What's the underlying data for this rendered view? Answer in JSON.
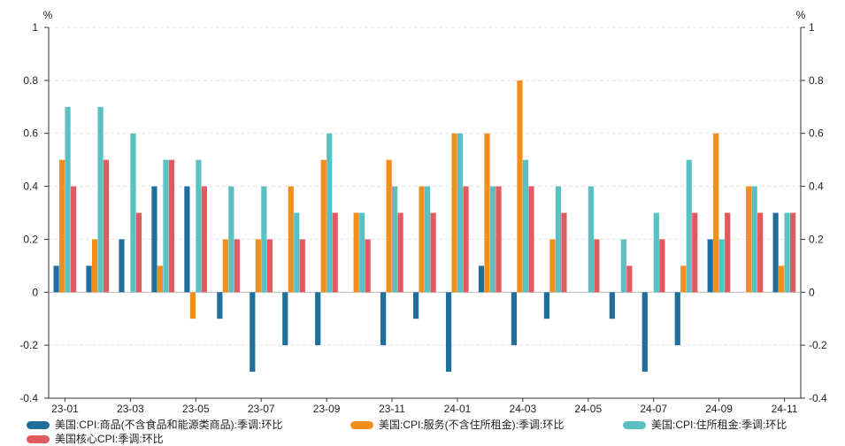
{
  "chart_data": {
    "type": "bar",
    "unit_left": "%",
    "unit_right": "%",
    "ylim": [
      -0.4,
      1
    ],
    "yticks": [
      -0.4,
      -0.2,
      0,
      0.2,
      0.4,
      0.6,
      0.8,
      1
    ],
    "ytick_labels": [
      "-0.4",
      "-0.2",
      "0",
      "0.2",
      "0.4",
      "0.6",
      "0.8",
      "1"
    ],
    "categories": [
      "23-01",
      "23-02",
      "23-03",
      "23-04",
      "23-05",
      "23-06",
      "23-07",
      "23-08",
      "23-09",
      "23-10",
      "23-11",
      "23-12",
      "24-01",
      "24-02",
      "24-03",
      "24-04",
      "24-05",
      "24-06",
      "24-07",
      "24-08",
      "24-09",
      "24-10",
      "24-11"
    ],
    "xtick_labels": [
      "23-01",
      "23-03",
      "23-05",
      "23-07",
      "23-09",
      "23-11",
      "24-01",
      "24-03",
      "24-05",
      "24-07",
      "24-09",
      "24-11"
    ],
    "series": [
      {
        "name": "美国:CPI:商品(不含食品和能源类商品):季调:环比",
        "color": "#1f6e9c",
        "values": [
          0.1,
          0.1,
          0.2,
          0.4,
          0.4,
          -0.1,
          -0.3,
          -0.2,
          -0.2,
          0,
          -0.2,
          -0.1,
          -0.3,
          0.1,
          -0.2,
          -0.1,
          0,
          -0.1,
          -0.3,
          -0.2,
          0.2,
          0,
          0.3
        ]
      },
      {
        "name": "美国:CPI:服务(不含住所租金):季调:环比",
        "color": "#f28e1c",
        "values": [
          0.5,
          0.2,
          0,
          0.1,
          -0.1,
          0.2,
          0.2,
          0.4,
          0.5,
          0.3,
          0.5,
          0.4,
          0.6,
          0.6,
          0.8,
          0.2,
          0,
          0,
          0,
          0.1,
          0.6,
          0.4,
          0.1
        ]
      },
      {
        "name": "美国:CPI:住所租金:季调:环比",
        "color": "#5bc0c2",
        "values": [
          0.7,
          0.7,
          0.6,
          0.5,
          0.5,
          0.4,
          0.4,
          0.3,
          0.6,
          0.3,
          0.4,
          0.4,
          0.6,
          0.4,
          0.5,
          0.4,
          0.4,
          0.2,
          0.3,
          0.5,
          0.2,
          0.4,
          0.3
        ]
      },
      {
        "name": "美国核心CPI:季调:环比",
        "color": "#e05a5f",
        "values": [
          0.4,
          0.5,
          0.3,
          0.5,
          0.4,
          0.2,
          0.2,
          0.2,
          0.3,
          0.2,
          0.3,
          0.3,
          0.4,
          0.4,
          0.4,
          0.3,
          0.2,
          0.1,
          0.2,
          0.3,
          0.3,
          0.3,
          0.3
        ]
      }
    ]
  }
}
